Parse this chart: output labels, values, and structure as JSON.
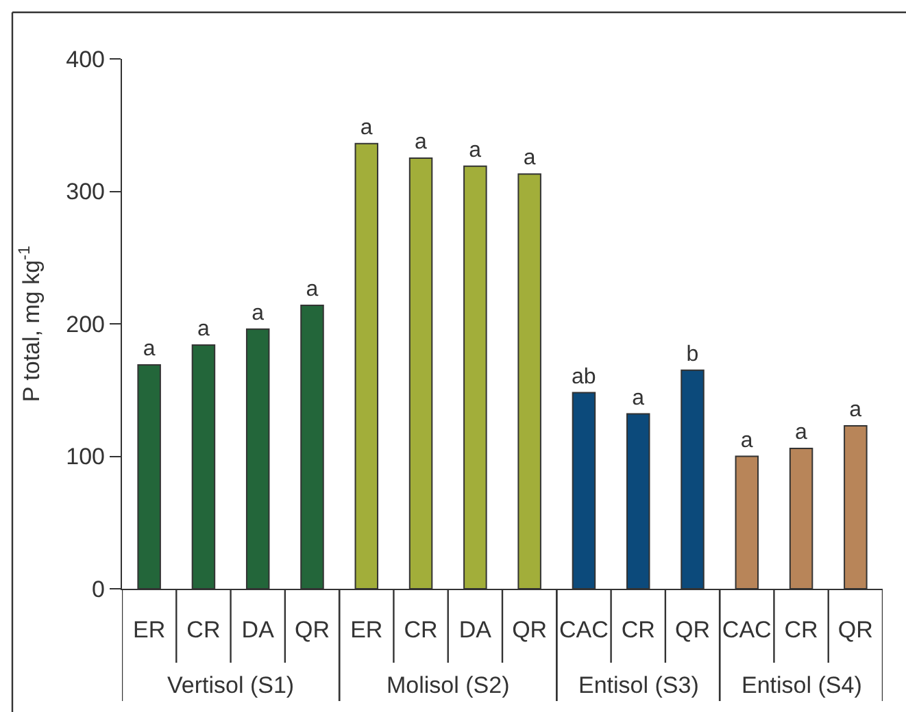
{
  "chart_data": {
    "type": "bar",
    "ylabel": "P total, mg kg$^{-1}$",
    "categories": [
      "ER",
      "CR",
      "DA",
      "QR",
      "ER",
      "CR",
      "DA",
      "QR",
      "CAC",
      "CR",
      "QR",
      "CAC",
      "CR",
      "QR"
    ],
    "values": [
      169,
      184,
      196,
      214,
      336,
      325,
      319,
      313,
      148,
      132,
      165,
      100,
      106,
      123
    ],
    "colors": [
      "#23663a",
      "#23663a",
      "#23663a",
      "#23663a",
      "#a2ae3a",
      "#a2ae3a",
      "#a2ae3a",
      "#a2ae3a",
      "#0c4a7b",
      "#0c4a7b",
      "#0c4a7b",
      "#b88559",
      "#b88559",
      "#b88559"
    ],
    "value_labels": [
      "a",
      "a",
      "a",
      "a",
      "a",
      "a",
      "a",
      "a",
      "ab",
      "a",
      "b",
      "a",
      "a",
      "a"
    ],
    "annotations": [
      "Vertisol (S1)",
      "Molisol (S2)",
      "Entisol (S3)",
      "Entisol (S4)"
    ],
    "ylim": [
      0,
      400
    ],
    "yticks": [
      0,
      100,
      200,
      300,
      400
    ]
  }
}
